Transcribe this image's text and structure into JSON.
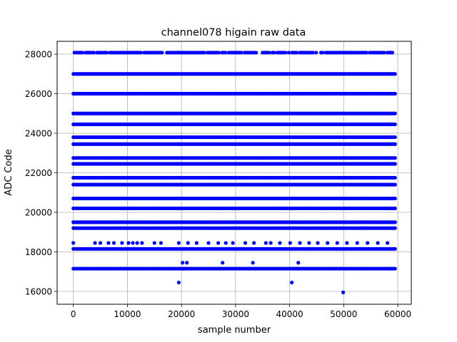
{
  "chart_data": {
    "type": "scatter",
    "title": "channel078 higain raw data",
    "xlabel": "sample number",
    "ylabel": "ADC Code",
    "xlim": [
      -3000,
      62500
    ],
    "ylim": [
      15350,
      28650
    ],
    "xticks": [
      0,
      10000,
      20000,
      30000,
      40000,
      50000,
      60000
    ],
    "xtick_labels": [
      "0",
      "10000",
      "20000",
      "30000",
      "40000",
      "50000",
      "60000"
    ],
    "yticks": [
      16000,
      18000,
      20000,
      22000,
      24000,
      26000,
      28000
    ],
    "ytick_labels": [
      "16000",
      "18000",
      "20000",
      "22000",
      "24000",
      "26000",
      "28000"
    ],
    "grid": true,
    "marker_color": "#0000ff",
    "dense_levels": [
      17150,
      18150,
      19200,
      19500,
      20200,
      20700,
      21400,
      21750,
      22450,
      22750,
      23450,
      23800,
      24450,
      25000,
      26000,
      27000
    ],
    "dense_x_range": [
      0,
      59500
    ],
    "sparse_levels": [
      {
        "y": 28080,
        "x_range": [
          200,
          59000
        ]
      }
    ],
    "scattered_points_18450": [
      0,
      4000,
      5000,
      6500,
      7500,
      9000,
      10200,
      11000,
      11800,
      12700,
      15000,
      16200,
      19500,
      21200,
      22800,
      25000,
      26800,
      28200,
      29500,
      31800,
      33400,
      35600,
      36500,
      38200,
      40100,
      41900,
      43600,
      45200,
      47000,
      48800,
      50600,
      52500,
      54400,
      56300,
      58100
    ],
    "outlier_points": [
      {
        "x": 19500,
        "y": 16450
      },
      {
        "x": 20200,
        "y": 17450
      },
      {
        "x": 21000,
        "y": 17450
      },
      {
        "x": 27600,
        "y": 17450
      },
      {
        "x": 33200,
        "y": 17450
      },
      {
        "x": 40400,
        "y": 16450
      },
      {
        "x": 41600,
        "y": 17450
      },
      {
        "x": 49900,
        "y": 15950
      }
    ]
  }
}
